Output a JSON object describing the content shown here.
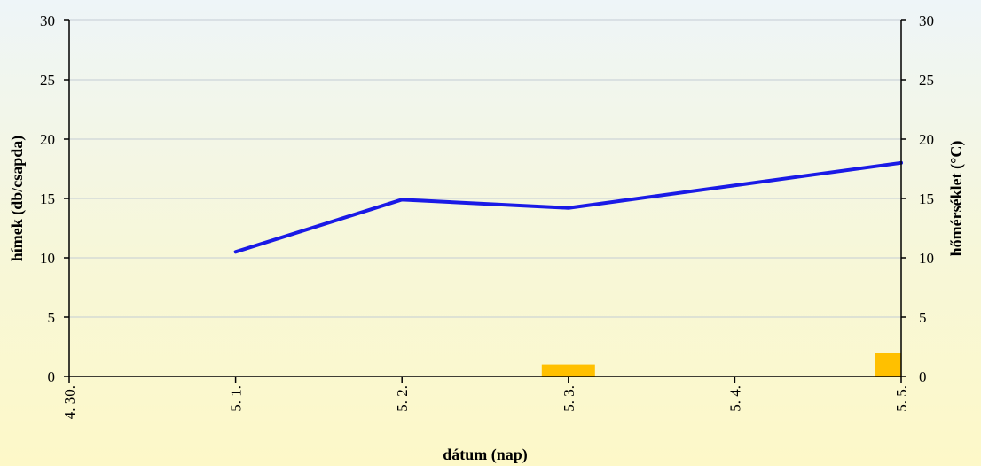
{
  "chart_data": {
    "type": "bar+line",
    "categories": [
      "4. 30.",
      "5. 1.",
      "5. 2.",
      "5. 3.",
      "5. 4.",
      "5. 5."
    ],
    "series": [
      {
        "kind": "bar",
        "axis": "left",
        "color": "#ffc000",
        "values": [
          0,
          0,
          0,
          1,
          0,
          2
        ]
      },
      {
        "kind": "line",
        "axis": "right",
        "color": "#1a1ae6",
        "values": [
          null,
          10.5,
          14.9,
          14.2,
          16.1,
          18.0
        ]
      }
    ],
    "xlabel": "dátum (nap)",
    "ylabel_left": "hímek (db/csapda)",
    "ylabel_right": "hőmérséklet (°C)",
    "ylim_left": [
      0,
      30
    ],
    "ylim_right": [
      0,
      30
    ],
    "yticks": [
      0,
      5,
      10,
      15,
      20,
      25,
      30
    ],
    "grid": true
  }
}
